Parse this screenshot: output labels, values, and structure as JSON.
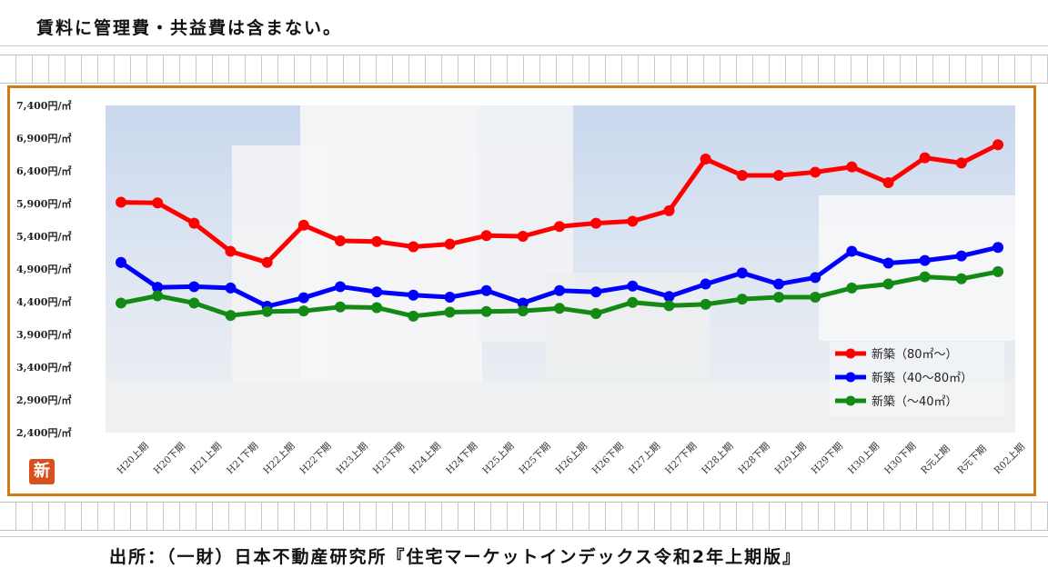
{
  "header": {
    "note": "賃料に管理費・共益費は含まない。"
  },
  "footer": {
    "source": "出所：（一財）日本不動産研究所『住宅マーケットインデックス令和2年上期版』"
  },
  "logo": {
    "text": "新"
  },
  "colors": {
    "frame": "#d07a1a",
    "red": "#ff0000",
    "blue": "#0000ff",
    "green": "#138a13"
  },
  "chart_data": {
    "type": "line",
    "categories": [
      "H20上期",
      "H20下期",
      "H21上期",
      "H21下期",
      "H22上期",
      "H22下期",
      "H23上期",
      "H23下期",
      "H24上期",
      "H24下期",
      "H25上期",
      "H25下期",
      "H26上期",
      "H26下期",
      "H27上期",
      "H27下期",
      "H28上期",
      "H28下期",
      "H29上期",
      "H29下期",
      "H30上期",
      "H30下期",
      "R元上期",
      "R元下期",
      "R02上期"
    ],
    "yticks": [
      "7,400円/㎡",
      "6,900円/㎡",
      "6,400円/㎡",
      "5,900円/㎡",
      "5,400円/㎡",
      "4,900円/㎡",
      "4,400円/㎡",
      "3,900円/㎡",
      "3,400円/㎡",
      "2,900円/㎡",
      "2,400円/㎡"
    ],
    "ylim": [
      2400,
      7400
    ],
    "grid": false,
    "legend_position": "bottom-right",
    "series": [
      {
        "name": "新築（80㎡～）",
        "color": "#ff0000",
        "values": [
          5920,
          5910,
          5600,
          5170,
          5000,
          5570,
          5330,
          5320,
          5240,
          5280,
          5410,
          5400,
          5550,
          5600,
          5630,
          5790,
          6580,
          6330,
          6330,
          6380,
          6460,
          6220,
          6600,
          6520,
          6800
        ]
      },
      {
        "name": "新築（40～80㎡）",
        "color": "#0000ff",
        "values": [
          5000,
          4620,
          4630,
          4610,
          4330,
          4460,
          4630,
          4550,
          4500,
          4470,
          4570,
          4380,
          4570,
          4550,
          4640,
          4480,
          4670,
          4840,
          4670,
          4770,
          5170,
          4990,
          5030,
          5100,
          5230
        ]
      },
      {
        "name": "新築（～40㎡）",
        "color": "#138a13",
        "values": [
          4380,
          4490,
          4380,
          4190,
          4250,
          4260,
          4320,
          4310,
          4180,
          4240,
          4250,
          4260,
          4300,
          4220,
          4390,
          4340,
          4360,
          4440,
          4470,
          4470,
          4610,
          4670,
          4780,
          4750,
          4860
        ]
      }
    ]
  }
}
